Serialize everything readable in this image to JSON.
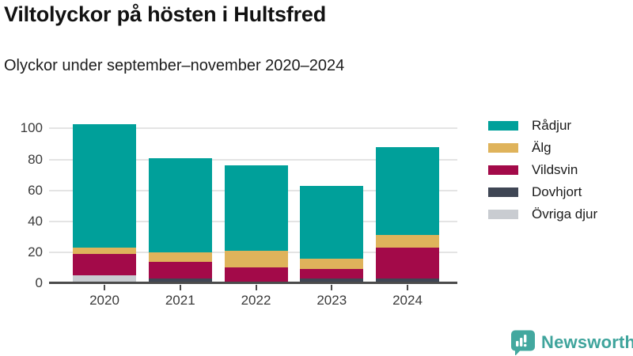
{
  "header": {
    "title": "Viltolyckor på hösten i Hultsfred",
    "subtitle": "Olyckor under september–november 2020–2024"
  },
  "chart_data": {
    "type": "bar",
    "stacked": true,
    "grid": true,
    "legend_position": "right",
    "categories": [
      "2020",
      "2021",
      "2022",
      "2023",
      "2024"
    ],
    "series": [
      {
        "name": "Rådjur",
        "color": "#00a09a",
        "values": [
          80,
          61,
          55,
          47,
          57
        ]
      },
      {
        "name": "Älg",
        "color": "#dfb35b",
        "values": [
          4,
          6,
          11,
          7,
          8
        ]
      },
      {
        "name": "Vildsvin",
        "color": "#a30a49",
        "values": [
          14,
          11,
          9,
          6,
          20
        ]
      },
      {
        "name": "Dovhjort",
        "color": "#3f4654",
        "values": [
          0,
          2,
          0,
          2,
          2
        ]
      },
      {
        "name": "Övriga djur",
        "color": "#c9ccd1",
        "values": [
          5,
          1,
          1,
          1,
          1
        ]
      }
    ],
    "totals": [
      103,
      81,
      76,
      63,
      88
    ],
    "y_ticks": [
      0,
      20,
      40,
      60,
      80,
      100
    ],
    "ylim": [
      0,
      100
    ],
    "xlabel": "",
    "ylabel": ""
  },
  "footer": {
    "brand": "Newsworthy",
    "brand_color": "#3fa49c"
  }
}
